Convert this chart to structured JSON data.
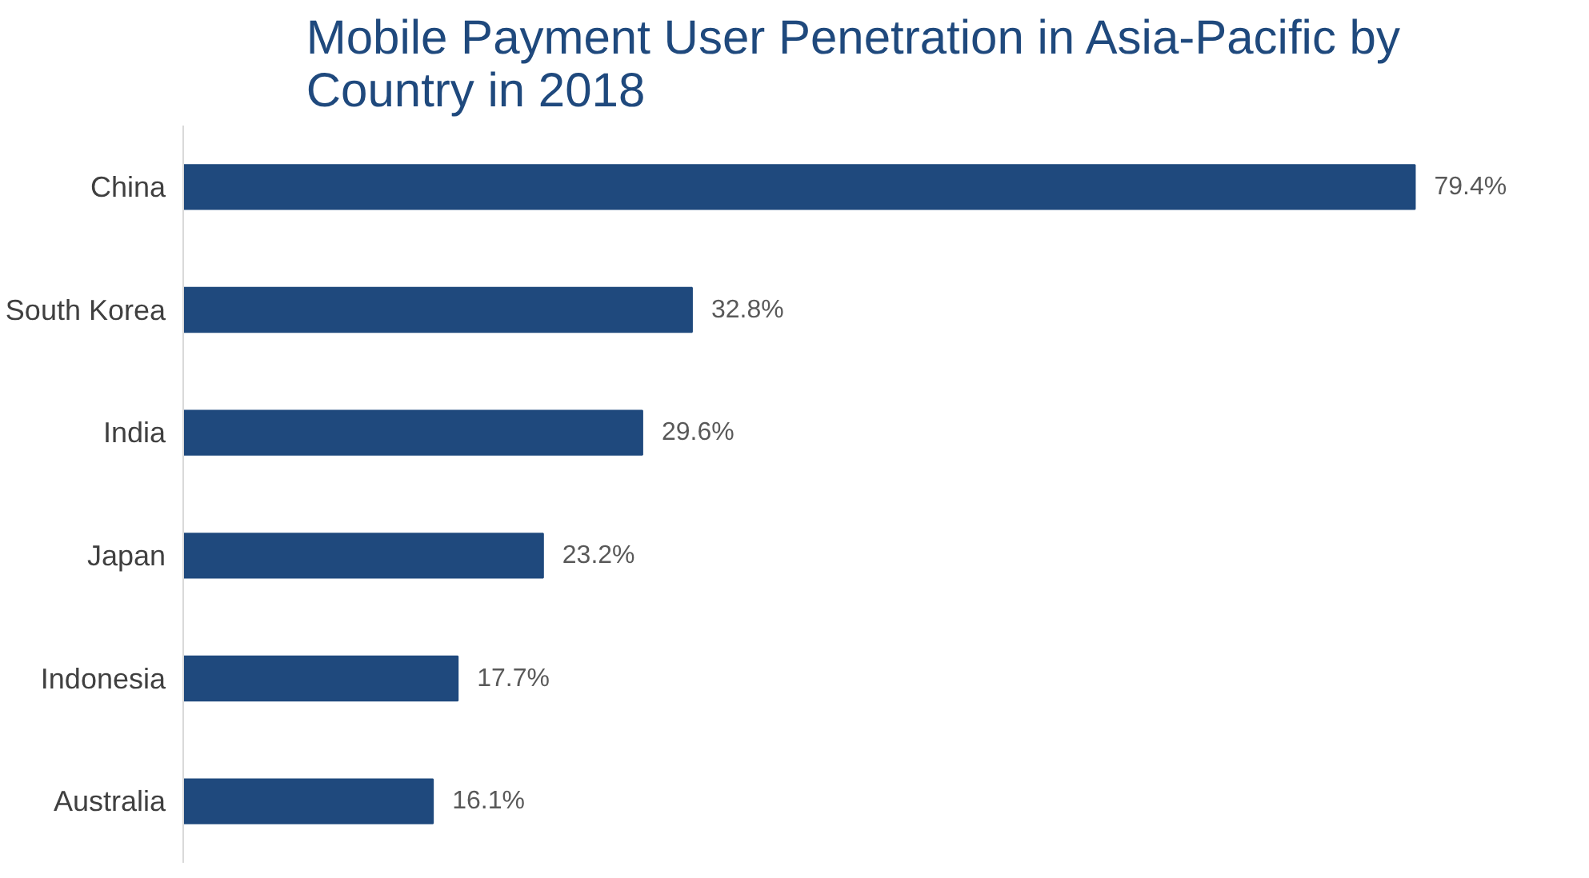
{
  "chart_data": {
    "type": "bar",
    "orientation": "horizontal",
    "title": "Mobile Payment User Penetration in Asia-Pacific by Country in 2018",
    "categories": [
      "China",
      "South Korea",
      "India",
      "Japan",
      "Indonesia",
      "Australia"
    ],
    "values": [
      79.4,
      32.8,
      29.6,
      23.2,
      17.7,
      16.1
    ],
    "value_labels": [
      "79.4%",
      "32.8%",
      "29.6%",
      "23.2%",
      "17.7%",
      "16.1%"
    ],
    "color": "#1f497d",
    "grid": false
  }
}
